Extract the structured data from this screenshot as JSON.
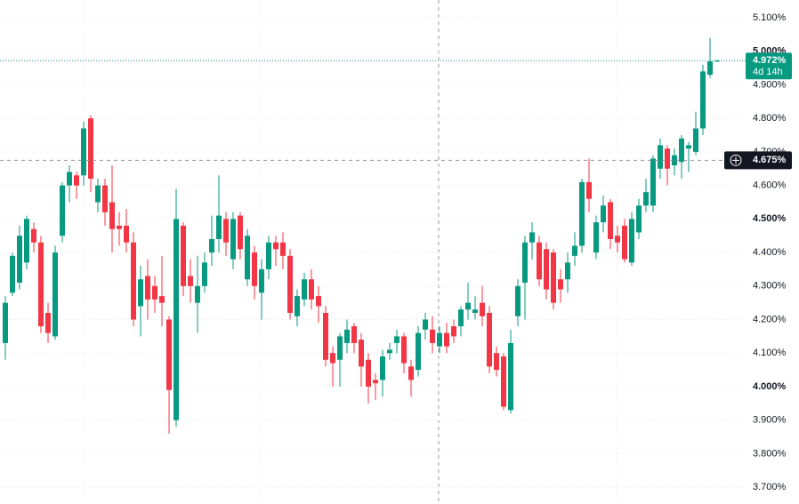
{
  "chart_data": {
    "type": "candlestick",
    "up_color": "#089981",
    "down_color": "#f23645",
    "ylim": [
      3.65,
      5.153
    ],
    "yticks": [
      {
        "value": 3.7,
        "label": "3.700%"
      },
      {
        "value": 3.8,
        "label": "3.800%"
      },
      {
        "value": 3.9,
        "label": "3.900%"
      },
      {
        "value": 4.0,
        "label": "4.000%"
      },
      {
        "value": 4.1,
        "label": "4.100%"
      },
      {
        "value": 4.2,
        "label": "4.200%"
      },
      {
        "value": 4.3,
        "label": "4.300%"
      },
      {
        "value": 4.4,
        "label": "4.400%"
      },
      {
        "value": 4.5,
        "label": "4.500%"
      },
      {
        "value": 4.6,
        "label": "4.600%"
      },
      {
        "value": 4.7,
        "label": "4.700%"
      },
      {
        "value": 4.8,
        "label": "4.800%"
      },
      {
        "value": 4.9,
        "label": "4.900%"
      },
      {
        "value": 5.0,
        "label": "5.000%"
      },
      {
        "value": 5.1,
        "label": "5.100%"
      }
    ],
    "grid": true,
    "last_price": {
      "value": 4.972,
      "label": "4.972%",
      "countdown": "4d 14h"
    },
    "crosshair": {
      "value": 4.675,
      "label": "4.675%"
    },
    "ohlc": [
      [
        4.13,
        4.27,
        4.08,
        4.25
      ],
      [
        4.28,
        4.4,
        4.27,
        4.39
      ],
      [
        4.31,
        4.48,
        4.29,
        4.45
      ],
      [
        4.37,
        4.51,
        4.35,
        4.5
      ],
      [
        4.47,
        4.49,
        4.4,
        4.43
      ],
      [
        4.43,
        4.45,
        4.16,
        4.18
      ],
      [
        4.22,
        4.25,
        4.13,
        4.16
      ],
      [
        4.15,
        4.42,
        4.14,
        4.4
      ],
      [
        4.45,
        4.61,
        4.43,
        4.6
      ],
      [
        4.6,
        4.66,
        4.55,
        4.64
      ],
      [
        4.63,
        4.64,
        4.56,
        4.6
      ],
      [
        4.63,
        4.79,
        4.6,
        4.77
      ],
      [
        4.8,
        4.81,
        4.58,
        4.62
      ],
      [
        4.55,
        4.62,
        4.52,
        4.6
      ],
      [
        4.6,
        4.62,
        4.48,
        4.52
      ],
      [
        4.55,
        4.66,
        4.4,
        4.47
      ],
      [
        4.48,
        4.52,
        4.42,
        4.47
      ],
      [
        4.48,
        4.53,
        4.4,
        4.43
      ],
      [
        4.43,
        4.46,
        4.18,
        4.2
      ],
      [
        4.24,
        4.36,
        4.15,
        4.32
      ],
      [
        4.33,
        4.38,
        4.2,
        4.26
      ],
      [
        4.3,
        4.33,
        4.22,
        4.26
      ],
      [
        4.27,
        4.39,
        4.18,
        4.25
      ],
      [
        4.2,
        4.21,
        3.86,
        3.99
      ],
      [
        3.9,
        4.59,
        3.88,
        4.5
      ],
      [
        4.48,
        4.49,
        4.27,
        4.3
      ],
      [
        4.33,
        4.38,
        4.25,
        4.3
      ],
      [
        4.25,
        4.39,
        4.16,
        4.3
      ],
      [
        4.3,
        4.4,
        4.28,
        4.37
      ],
      [
        4.4,
        4.51,
        4.36,
        4.44
      ],
      [
        4.44,
        4.63,
        4.4,
        4.51
      ],
      [
        4.5,
        4.52,
        4.39,
        4.43
      ],
      [
        4.38,
        4.52,
        4.35,
        4.5
      ],
      [
        4.51,
        4.52,
        4.38,
        4.41
      ],
      [
        4.32,
        4.47,
        4.3,
        4.45
      ],
      [
        4.4,
        4.42,
        4.26,
        4.3
      ],
      [
        4.28,
        4.38,
        4.2,
        4.35
      ],
      [
        4.35,
        4.45,
        4.32,
        4.43
      ],
      [
        4.43,
        4.45,
        4.36,
        4.41
      ],
      [
        4.43,
        4.46,
        4.35,
        4.39
      ],
      [
        4.39,
        4.41,
        4.2,
        4.22
      ],
      [
        4.21,
        4.29,
        4.18,
        4.27
      ],
      [
        4.26,
        4.34,
        4.24,
        4.32
      ],
      [
        4.32,
        4.35,
        4.23,
        4.26
      ],
      [
        4.27,
        4.3,
        4.19,
        4.24
      ],
      [
        4.22,
        4.24,
        4.06,
        4.08
      ],
      [
        4.1,
        4.12,
        4.0,
        4.07
      ],
      [
        4.08,
        4.16,
        4.0,
        4.15
      ],
      [
        4.13,
        4.2,
        4.1,
        4.17
      ],
      [
        4.18,
        4.19,
        4.1,
        4.13
      ],
      [
        4.14,
        4.16,
        4.0,
        4.06
      ],
      [
        4.08,
        4.1,
        3.95,
        4.0
      ],
      [
        4.02,
        4.04,
        3.96,
        4.01
      ],
      [
        4.02,
        4.11,
        3.97,
        4.09
      ],
      [
        4.1,
        4.13,
        4.08,
        4.11
      ],
      [
        4.13,
        4.17,
        4.1,
        4.15
      ],
      [
        4.15,
        4.16,
        4.04,
        4.07
      ],
      [
        4.06,
        4.08,
        3.97,
        4.02
      ],
      [
        4.05,
        4.18,
        4.03,
        4.16
      ],
      [
        4.17,
        4.22,
        4.14,
        4.2
      ],
      [
        4.17,
        4.21,
        4.1,
        4.13
      ],
      [
        4.12,
        4.18,
        4.1,
        4.16
      ],
      [
        4.16,
        4.19,
        4.1,
        4.12
      ],
      [
        4.18,
        4.2,
        4.13,
        4.15
      ],
      [
        4.18,
        4.24,
        4.15,
        4.23
      ],
      [
        4.23,
        4.31,
        4.2,
        4.25
      ],
      [
        4.22,
        4.27,
        4.2,
        4.23
      ],
      [
        4.25,
        4.3,
        4.18,
        4.21
      ],
      [
        4.22,
        4.24,
        4.04,
        4.06
      ],
      [
        4.1,
        4.12,
        4.03,
        4.05
      ],
      [
        4.09,
        4.1,
        3.93,
        3.94
      ],
      [
        3.93,
        4.17,
        3.92,
        4.13
      ],
      [
        4.21,
        4.32,
        4.18,
        4.3
      ],
      [
        4.31,
        4.45,
        4.2,
        4.43
      ],
      [
        4.43,
        4.49,
        4.38,
        4.46
      ],
      [
        4.43,
        4.45,
        4.3,
        4.32
      ],
      [
        4.41,
        4.43,
        4.26,
        4.29
      ],
      [
        4.4,
        4.41,
        4.23,
        4.25
      ],
      [
        4.32,
        4.35,
        4.25,
        4.29
      ],
      [
        4.32,
        4.4,
        4.28,
        4.37
      ],
      [
        4.39,
        4.46,
        4.36,
        4.42
      ],
      [
        4.42,
        4.62,
        4.4,
        4.61
      ],
      [
        4.61,
        4.68,
        4.52,
        4.56
      ],
      [
        4.4,
        4.51,
        4.38,
        4.49
      ],
      [
        4.49,
        4.57,
        4.46,
        4.54
      ],
      [
        4.55,
        4.56,
        4.41,
        4.44
      ],
      [
        4.45,
        4.48,
        4.4,
        4.43
      ],
      [
        4.48,
        4.5,
        4.37,
        4.38
      ],
      [
        4.37,
        4.52,
        4.36,
        4.5
      ],
      [
        4.46,
        4.56,
        4.44,
        4.54
      ],
      [
        4.54,
        4.62,
        4.52,
        4.58
      ],
      [
        4.54,
        4.69,
        4.52,
        4.68
      ],
      [
        4.65,
        4.74,
        4.62,
        4.72
      ],
      [
        4.71,
        4.72,
        4.6,
        4.65
      ],
      [
        4.66,
        4.71,
        4.63,
        4.69
      ],
      [
        4.67,
        4.75,
        4.62,
        4.74
      ],
      [
        4.71,
        4.73,
        4.64,
        4.72
      ],
      [
        4.7,
        4.82,
        4.69,
        4.77
      ],
      [
        4.77,
        4.96,
        4.75,
        4.94
      ],
      [
        4.93,
        5.04,
        4.92,
        4.97
      ],
      [
        4.972,
        4.975,
        4.968,
        4.972
      ]
    ]
  }
}
